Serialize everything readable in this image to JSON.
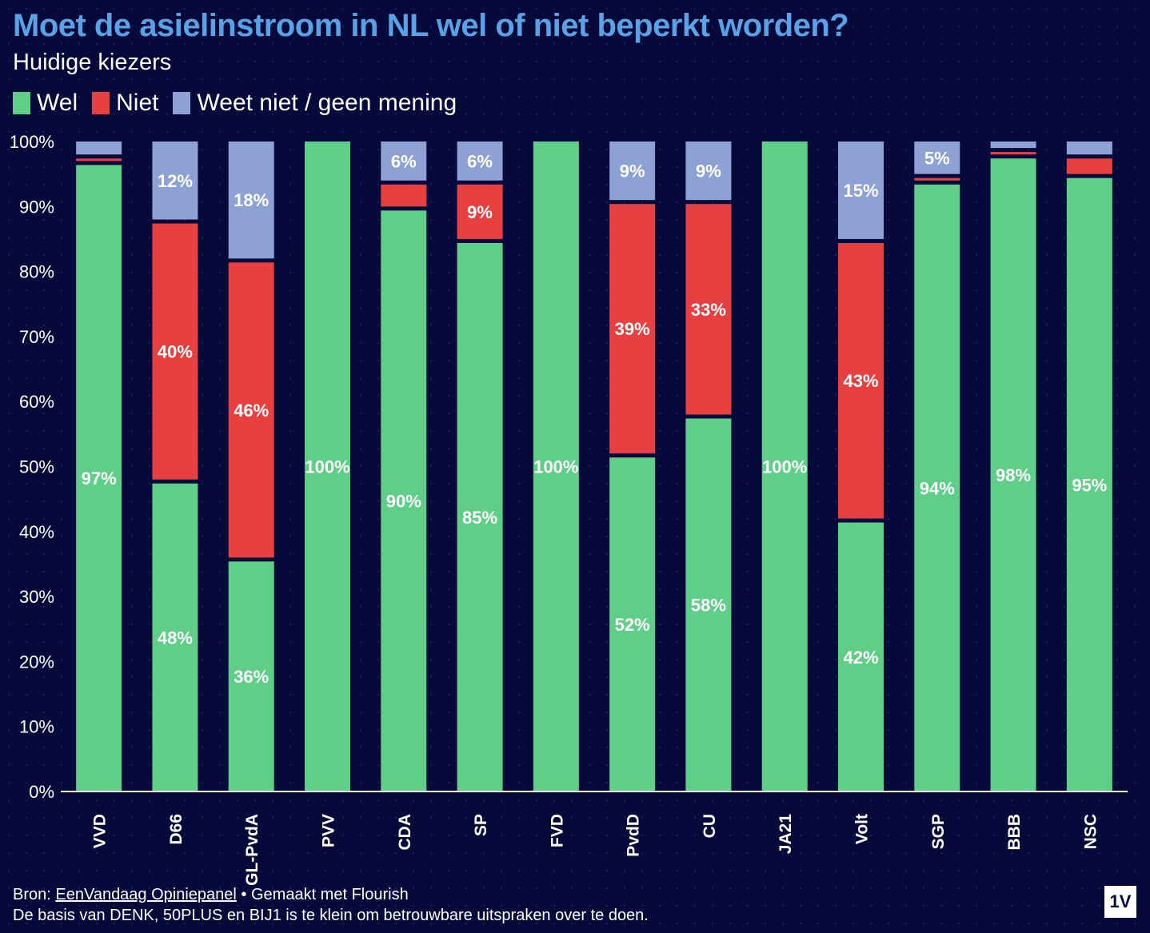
{
  "header": {
    "title": "Moet de asielinstroom in NL wel of niet beperkt worden?",
    "subtitle": "Huidige kiezers"
  },
  "colors": {
    "wel": "#5fcf87",
    "niet": "#e84040",
    "weet_niet": "#8da1d4",
    "background": "#050a3a",
    "title": "#5aa2e6"
  },
  "legend": {
    "items": [
      {
        "label": "Wel",
        "color": "#5fcf87"
      },
      {
        "label": "Niet",
        "color": "#e84040"
      },
      {
        "label": "Weet niet / geen mening",
        "color": "#8da1d4"
      }
    ]
  },
  "chart_data": {
    "type": "bar",
    "stacked": true,
    "title": "Moet de asielinstroom in NL wel of niet beperkt worden?",
    "subtitle": "Huidige kiezers",
    "categories": [
      "VVD",
      "D66",
      "GL-PvdA",
      "PVV",
      "CDA",
      "SP",
      "FVD",
      "PvdD",
      "CU",
      "JA21",
      "Volt",
      "SGP",
      "BBB",
      "NSC"
    ],
    "series": [
      {
        "name": "Wel",
        "values": [
          97,
          48,
          36,
          100,
          90,
          85,
          100,
          52,
          58,
          100,
          42,
          94,
          98,
          95
        ],
        "labels": [
          "97%",
          "48%",
          "36%",
          "100%",
          "90%",
          "85%",
          "100%",
          "52%",
          "58%",
          "100%",
          "42%",
          "94%",
          "98%",
          "95%"
        ]
      },
      {
        "name": "Niet",
        "values": [
          1,
          40,
          46,
          0,
          4,
          9,
          0,
          39,
          33,
          0,
          43,
          1,
          1,
          3
        ],
        "labels": [
          "",
          "40%",
          "46%",
          "",
          "",
          "9%",
          "",
          "39%",
          "33%",
          "",
          "43%",
          "",
          "",
          ""
        ]
      },
      {
        "name": "Weet niet / geen mening",
        "values": [
          2,
          12,
          18,
          0,
          6,
          6,
          0,
          9,
          9,
          0,
          15,
          5,
          1,
          2
        ],
        "labels": [
          "",
          "12%",
          "18%",
          "",
          "6%",
          "6%",
          "",
          "9%",
          "9%",
          "",
          "15%",
          "5%",
          "",
          ""
        ]
      }
    ],
    "y_ticks": [
      "0%",
      "10%",
      "20%",
      "30%",
      "40%",
      "50%",
      "60%",
      "70%",
      "80%",
      "90%",
      "100%"
    ],
    "ylim": [
      0,
      100
    ],
    "xlabel": "",
    "ylabel": ""
  },
  "footer": {
    "source_prefix": "Bron:",
    "source_link": "EenVandaag Opiniepanel",
    "made_with": "• Gemaakt met Flourish",
    "note": "De basis van DENK, 50PLUS en BIJ1 is te klein om betrouwbare uitspraken over te doen."
  },
  "logo": {
    "text": "1V"
  }
}
